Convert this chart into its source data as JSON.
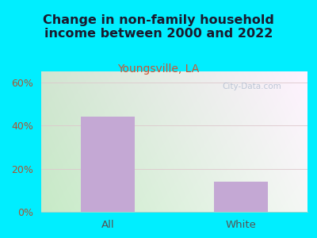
{
  "title": "Change in non-family household\nincome between 2000 and 2022",
  "subtitle": "Youngsville, LA",
  "categories": [
    "All",
    "White"
  ],
  "values": [
    44,
    14
  ],
  "bar_color": "#c4a8d4",
  "title_fontsize": 11.5,
  "subtitle_fontsize": 10,
  "subtitle_color": "#cc5533",
  "title_color": "#1a1a2e",
  "xlabel_color": "#555555",
  "ytick_color": "#aa5533",
  "ylim": [
    0,
    65
  ],
  "yticks": [
    0,
    20,
    40,
    60
  ],
  "ytick_labels": [
    "0%",
    "20%",
    "40%",
    "60%"
  ],
  "background_outer": "#00eeff",
  "bg_color_topleft": "#ddeedd",
  "bg_color_topright": "#e8eeee",
  "bg_color_bottomleft": "#c8e8c8",
  "bg_color_bottomright": "#dde8e8",
  "grid_color": "#ddc8cc",
  "watermark": "City-Data.com"
}
